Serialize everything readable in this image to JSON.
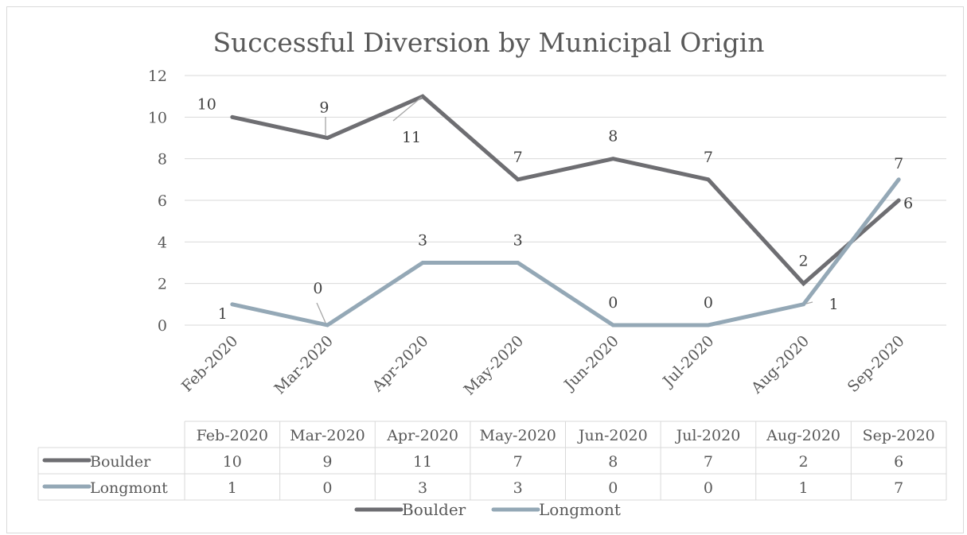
{
  "chart_data": {
    "type": "line",
    "title": "Successful Diversion by Municipal Origin",
    "categories": [
      "Feb-2020",
      "Mar-2020",
      "Apr-2020",
      "May-2020",
      "Jun-2020",
      "Jul-2020",
      "Aug-2020",
      "Sep-2020"
    ],
    "series": [
      {
        "name": "Boulder",
        "values": [
          10,
          9,
          11,
          7,
          8,
          7,
          2,
          6
        ],
        "color": "#6e6e72"
      },
      {
        "name": "Longmont",
        "values": [
          1,
          0,
          3,
          3,
          0,
          0,
          1,
          7
        ],
        "color": "#94a8b6"
      }
    ],
    "ylim": [
      0,
      12
    ],
    "yticks": [
      0,
      2,
      4,
      6,
      8,
      10,
      12
    ],
    "grid": true,
    "data_table": true,
    "legend_position": "bottom",
    "gridline_color": "#d9d9d9"
  }
}
